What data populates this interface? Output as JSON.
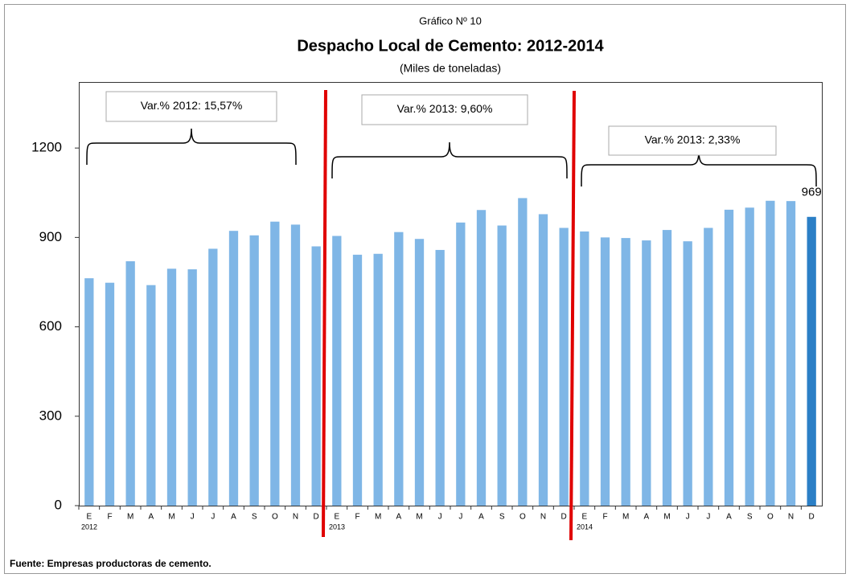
{
  "chart_data": {
    "type": "bar",
    "supertitle": "Gráfico Nº 10",
    "title": "Despacho Local de Cemento: 2012-2014",
    "subtitle": "(Miles de toneladas)",
    "categories": [
      "E",
      "F",
      "M",
      "A",
      "M",
      "J",
      "J",
      "A",
      "S",
      "O",
      "N",
      "D",
      "E",
      "F",
      "M",
      "A",
      "M",
      "J",
      "J",
      "A",
      "S",
      "O",
      "N",
      "D",
      "E",
      "F",
      "M",
      "A",
      "M",
      "J",
      "J",
      "A",
      "S",
      "O",
      "N",
      "D"
    ],
    "years": [
      "2012",
      "2013",
      "2014"
    ],
    "values": [
      763,
      748,
      820,
      740,
      795,
      793,
      862,
      922,
      907,
      953,
      943,
      870,
      905,
      842,
      845,
      918,
      895,
      858,
      950,
      992,
      940,
      1032,
      978,
      932,
      920,
      900,
      898,
      890,
      925,
      887,
      932,
      993,
      1000,
      1023,
      1022,
      969
    ],
    "value_labels": [
      null,
      null,
      null,
      null,
      null,
      null,
      null,
      null,
      null,
      null,
      null,
      null,
      null,
      null,
      null,
      null,
      null,
      null,
      null,
      null,
      null,
      null,
      null,
      null,
      null,
      null,
      null,
      null,
      null,
      null,
      null,
      null,
      null,
      null,
      null,
      "969"
    ],
    "color": "#7fb6e6",
    "highlight_color": "#2b7fc6",
    "ylim": [
      0,
      1400
    ],
    "yticks": [
      0,
      300,
      600,
      900,
      1200
    ],
    "grid": false,
    "annotations": [
      "Var.% 2012: 15,57%",
      "Var.% 2013: 9,60%",
      "Var.% 2013: 2,33%"
    ],
    "source": "Fuente: Empresas productoras de cemento."
  }
}
